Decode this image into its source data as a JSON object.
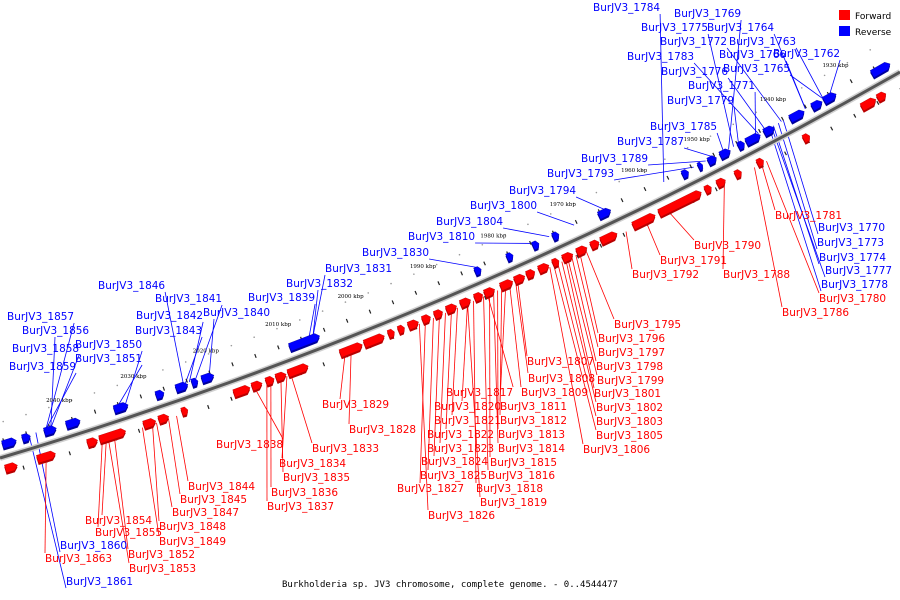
{
  "colors": {
    "forward": "#ff0000",
    "reverse": "#0000ff",
    "forward_dark": "#b80000",
    "reverse_dark": "#00009a",
    "link_forward": "#ff0000",
    "link_reverse": "#0000ff",
    "backbone": "#555555"
  },
  "legend": {
    "forward": "Forward",
    "reverse": "Reverse"
  },
  "caption": "Burkholderia sp. JV3 chromosome, complete genome. - 0..4544477",
  "scale_ticks": [
    "1930 kbp",
    "1940 kbp",
    "1950 kbp",
    "1960 kbp",
    "1970 kbp",
    "1980 kbp",
    "1990 kbp",
    "2000 kbp",
    "2010 kbp",
    "2020 kbp",
    "2030 kbp",
    "2040 kbp"
  ],
  "reverse_labels": [
    "BurJV3_1784",
    "BurJV3_1769",
    "BurJV3_1775",
    "BurJV3_1764",
    "BurJV3_1772",
    "BurJV3_1763",
    "BurJV3_1783",
    "BurJV3_1766",
    "BurJV3_1762",
    "BurJV3_1776",
    "BurJV3_1765",
    "BurJV3_1771",
    "BurJV3_1779",
    "BurJV3_1785",
    "BurJV3_1787",
    "BurJV3_1789",
    "BurJV3_1793",
    "BurJV3_1794",
    "BurJV3_1800",
    "BurJV3_1804",
    "BurJV3_1810",
    "BurJV3_1830",
    "BurJV3_1831",
    "BurJV3_1832",
    "BurJV3_1846",
    "BurJV3_1839",
    "BurJV3_1841",
    "BurJV3_1842",
    "BurJV3_1840",
    "BurJV3_1843",
    "BurJV3_1857",
    "BurJV3_1856",
    "BurJV3_1858",
    "BurJV3_1850",
    "BurJV3_1851",
    "BurJV3_1859",
    "BurJV3_1770",
    "BurJV3_1773",
    "BurJV3_1774",
    "BurJV3_1777",
    "BurJV3_1778",
    "BurJV3_1860",
    "BurJV3_1861"
  ],
  "forward_labels": [
    "BurJV3_1781",
    "BurJV3_1790",
    "BurJV3_1791",
    "BurJV3_1788",
    "BurJV3_1792",
    "BurJV3_1780",
    "BurJV3_1786",
    "BurJV3_1795",
    "BurJV3_1796",
    "BurJV3_1797",
    "BurJV3_1798",
    "BurJV3_1799",
    "BurJV3_1807",
    "BurJV3_1808",
    "BurJV3_1801",
    "BurJV3_1809",
    "BurJV3_1802",
    "BurJV3_1817",
    "BurJV3_1811",
    "BurJV3_1803",
    "BurJV3_1820",
    "BurJV3_1812",
    "BurJV3_1805",
    "BurJV3_1821",
    "BurJV3_1813",
    "BurJV3_1806",
    "BurJV3_1822",
    "BurJV3_1814",
    "BurJV3_1823",
    "BurJV3_1815",
    "BurJV3_1824",
    "BurJV3_1816",
    "BurJV3_1825",
    "BurJV3_1818",
    "BurJV3_1827",
    "BurJV3_1819",
    "BurJV3_1826",
    "BurJV3_1829",
    "BurJV3_1828",
    "BurJV3_1838",
    "BurJV3_1833",
    "BurJV3_1834",
    "BurJV3_1835",
    "BurJV3_1836",
    "BurJV3_1837",
    "BurJV3_1844",
    "BurJV3_1845",
    "BurJV3_1847",
    "BurJV3_1854",
    "BurJV3_1848",
    "BurJV3_1855",
    "BurJV3_1849",
    "BurJV3_1852",
    "BurJV3_1853",
    "BurJV3_1863"
  ]
}
